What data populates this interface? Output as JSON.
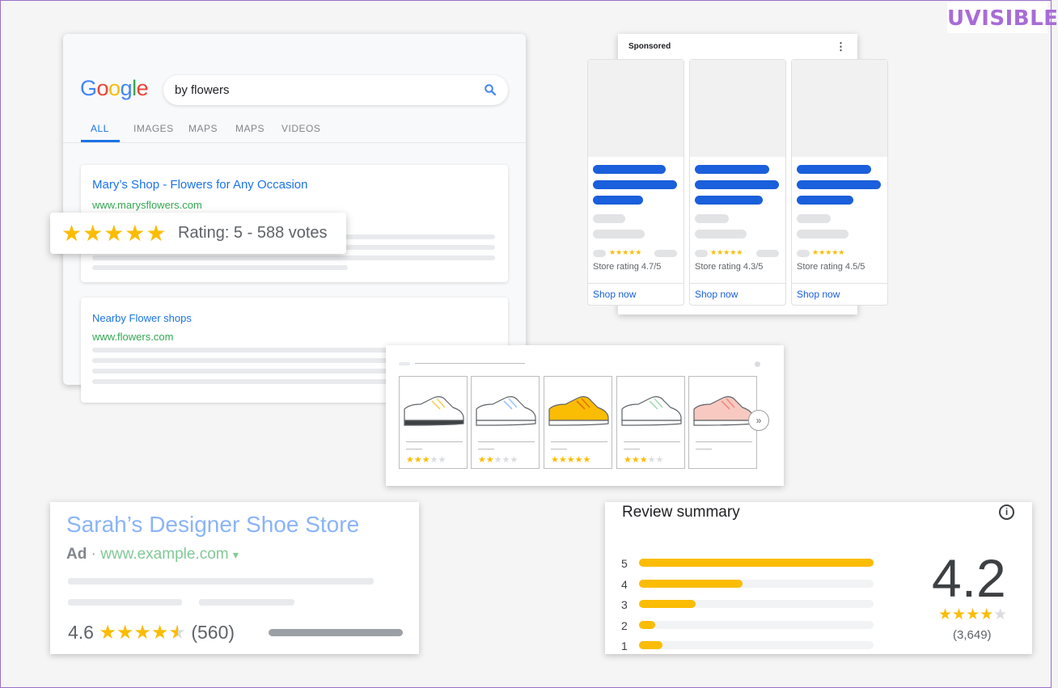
{
  "brand": {
    "logo_text": "UVISIBLE"
  },
  "search_card": {
    "logo_letters": [
      {
        "ch": "G",
        "color": "#4285f4"
      },
      {
        "ch": "o",
        "color": "#ea4335"
      },
      {
        "ch": "o",
        "color": "#fbbc05"
      },
      {
        "ch": "g",
        "color": "#4285f4"
      },
      {
        "ch": "l",
        "color": "#34a853"
      },
      {
        "ch": "e",
        "color": "#ea4335"
      }
    ],
    "query": "by flowers",
    "search_icon": "search-icon",
    "tabs": [
      "ALL",
      "IMAGES",
      "MAPS",
      "MAPS",
      "VIDEOS"
    ],
    "active_tab": "ALL",
    "results": [
      {
        "title": "Mary’s Shop - Flowers for Any Occasion",
        "url": "www.marysflowers.com"
      },
      {
        "title": "Nearby Flower shops",
        "url": "www.flowers.com"
      }
    ]
  },
  "rating_popup": {
    "stars": "★★★★★",
    "text": "Rating: 5 - 588 votes"
  },
  "sponsored": {
    "label": "Sponsored",
    "menu_icon": "more-vert-icon",
    "menu_glyph": "⋮",
    "products": [
      {
        "stars": "★★★★★",
        "rating_text": "Store rating 4.7/5",
        "cta": "Shop now"
      },
      {
        "stars": "★★★★★",
        "rating_text": "Store rating 4.3/5",
        "cta": "Shop now"
      },
      {
        "stars": "★★★★★",
        "rating_text": "Store rating 4.5/5",
        "cta": "Shop now"
      }
    ]
  },
  "shoes": {
    "items": [
      {
        "color": "#ffffff",
        "accent": "#f4d35e",
        "rating": 3
      },
      {
        "color": "#ffffff",
        "accent": "#9ec5f8",
        "rating": 2
      },
      {
        "color": "#fbbc04",
        "accent": "#e37400",
        "rating": 5
      },
      {
        "color": "#ffffff",
        "accent": "#a8dab5",
        "rating": 3
      },
      {
        "color": "#f7c9c0",
        "accent": "#f28b82",
        "rating": 0
      }
    ],
    "next_glyph": "»",
    "next_icon": "chevron-double-right-icon"
  },
  "ad": {
    "title": "Sarah’s Designer Shoe Store",
    "ad_label": "Ad",
    "separator": "·",
    "url": "www.example.com",
    "url_caret": "▾",
    "rating_value": "4.6",
    "stars": "★★★★",
    "half_star": "★",
    "count": "(560)"
  },
  "review_summary": {
    "title": "Review summary",
    "info_icon": "info-icon",
    "info_glyph": "i",
    "rows": [
      {
        "label": "5",
        "fraction": 1.0
      },
      {
        "label": "4",
        "fraction": 0.44
      },
      {
        "label": "3",
        "fraction": 0.24
      },
      {
        "label": "2",
        "fraction": 0.07
      },
      {
        "label": "1",
        "fraction": 0.1
      }
    ],
    "score": "4.2",
    "stars_on": "★★★★",
    "stars_off": "★",
    "count": "(3,649)"
  }
}
